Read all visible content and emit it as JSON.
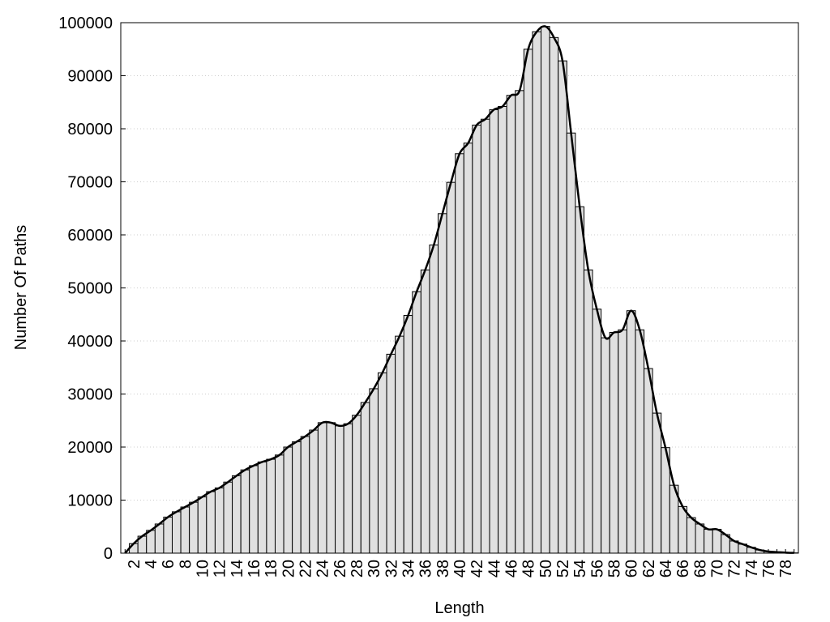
{
  "chart_data": {
    "type": "bar",
    "xlabel": "Length",
    "ylabel": "Number Of Paths",
    "categories": [
      null,
      "2",
      null,
      "4",
      null,
      "6",
      null,
      "8",
      null,
      "10",
      null,
      "12",
      null,
      "14",
      null,
      "16",
      null,
      "18",
      null,
      "20",
      null,
      "22",
      null,
      "24",
      null,
      "26",
      null,
      "28",
      null,
      "30",
      null,
      "32",
      null,
      "34",
      null,
      "36",
      null,
      "38",
      null,
      "40",
      null,
      "42",
      null,
      "44",
      null,
      "46",
      null,
      "48",
      null,
      "50",
      null,
      "52",
      null,
      "54",
      null,
      "56",
      null,
      "58",
      null,
      "60",
      null,
      "62",
      null,
      "64",
      null,
      "66",
      null,
      "68",
      null,
      "70",
      null,
      "72",
      null,
      "74",
      null,
      "76",
      null,
      "78",
      null
    ],
    "values": [
      0,
      1800,
      3200,
      4300,
      5500,
      6800,
      7800,
      8700,
      9600,
      10600,
      11600,
      12300,
      13400,
      14600,
      15700,
      16500,
      17200,
      17700,
      18500,
      20000,
      21000,
      22000,
      23200,
      24600,
      24600,
      24000,
      24400,
      26000,
      28400,
      31000,
      34000,
      37500,
      40900,
      44800,
      49300,
      53400,
      58100,
      64000,
      69900,
      75300,
      77300,
      80700,
      81800,
      83600,
      84200,
      86300,
      87200,
      95000,
      98300,
      99300,
      97200,
      92800,
      79200,
      65300,
      53400,
      46000,
      40600,
      41600,
      42100,
      45700,
      42100,
      34800,
      26400,
      19900,
      12800,
      8800,
      6700,
      5500,
      4500,
      4500,
      3500,
      2300,
      1700,
      1100,
      600,
      300,
      200,
      100,
      50
    ],
    "color": "#e0e0e0",
    "line_color": "#000000",
    "smooth_line": true,
    "ylim": [
      0,
      100000
    ],
    "yticks": [
      0,
      10000,
      20000,
      30000,
      40000,
      50000,
      60000,
      70000,
      80000,
      90000,
      100000
    ],
    "grid": true
  }
}
